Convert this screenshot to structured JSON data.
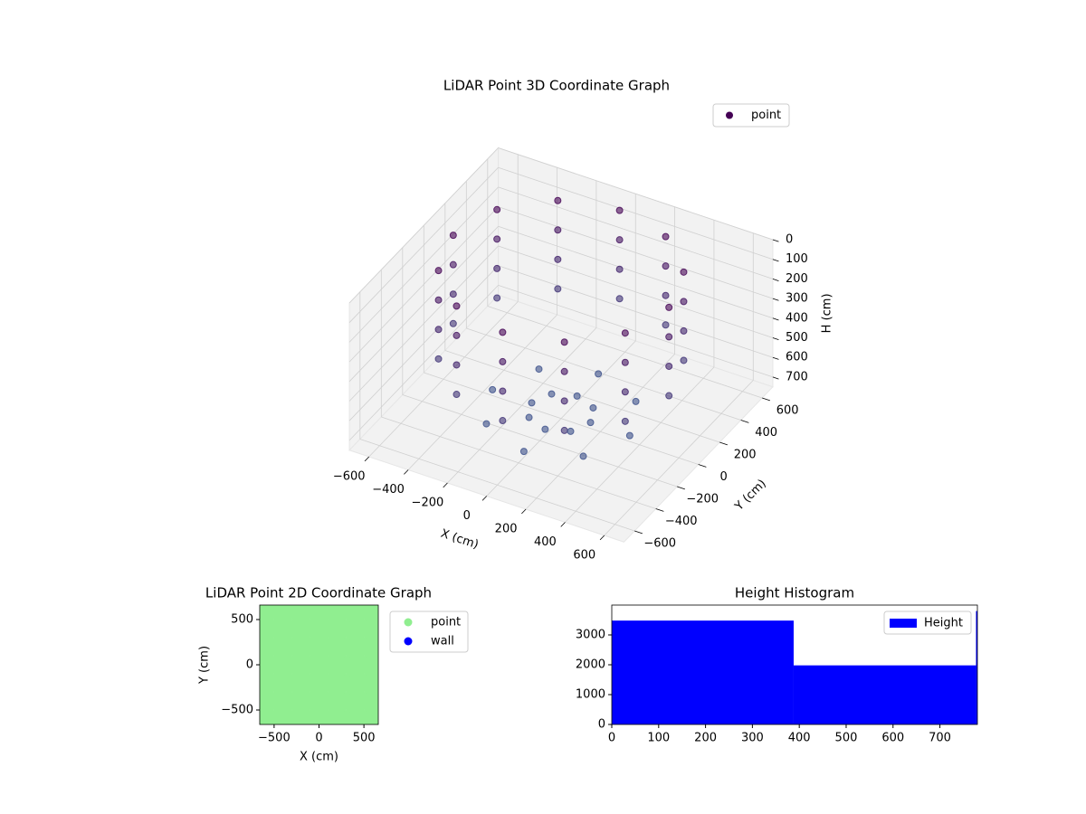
{
  "chart_data": [
    {
      "type": "scatter3d",
      "title": "LiDAR Point 3D Coordinate Graph",
      "xlabel": "X (cm)",
      "ylabel": "Y (cm)",
      "zlabel": "H (cm)",
      "xlim": [
        -700,
        700
      ],
      "ylim": [
        -700,
        700
      ],
      "zlim": [
        0,
        750
      ],
      "z_inverted": true,
      "xticks": [
        {
          "value": -600,
          "label": "−600"
        },
        {
          "value": -400,
          "label": "−400"
        },
        {
          "value": -200,
          "label": "−200"
        },
        0,
        200,
        400,
        600
      ],
      "yticks": [
        {
          "value": -600,
          "label": "−600"
        },
        {
          "value": -400,
          "label": "−400"
        },
        {
          "value": -200,
          "label": "−200"
        },
        0,
        200,
        400,
        600
      ],
      "zticks": [
        0,
        100,
        200,
        300,
        400,
        500,
        600,
        700
      ],
      "grid": true,
      "legend": "upper right",
      "colormap": [
        "#440154",
        "#3b528b"
      ],
      "series": [
        {
          "name": "point",
          "color": "#440154",
          "x": [
            550,
            476,
            275,
            0,
            -275,
            -476,
            -550,
            -476,
            -275,
            0,
            275,
            476,
            550,
            476,
            275,
            0,
            -275,
            -476,
            -550,
            -476,
            -275,
            0,
            275,
            476,
            550,
            476,
            275,
            0,
            -275,
            -476,
            -550,
            -476,
            -275,
            0,
            275,
            476,
            550,
            476,
            275,
            0,
            -275,
            -476,
            -550,
            -476,
            -275,
            0,
            275,
            476,
            150,
            106,
            0,
            -106,
            -150,
            -106,
            0,
            106,
            350,
            247,
            0,
            -247,
            -350,
            -247,
            0,
            247
          ],
          "y": [
            0,
            275,
            476,
            550,
            476,
            275,
            0,
            -275,
            -476,
            -550,
            -476,
            -275,
            0,
            275,
            476,
            550,
            476,
            275,
            0,
            -275,
            -476,
            -550,
            -476,
            -275,
            0,
            275,
            476,
            550,
            476,
            275,
            0,
            -275,
            -476,
            -550,
            -476,
            -275,
            0,
            275,
            476,
            550,
            476,
            275,
            0,
            -275,
            -476,
            -550,
            -476,
            -275,
            0,
            106,
            150,
            106,
            0,
            -106,
            -150,
            -106,
            0,
            247,
            350,
            247,
            0,
            -247,
            -350,
            -247
          ],
          "h": [
            0,
            0,
            0,
            0,
            0,
            0,
            0,
            0,
            0,
            0,
            0,
            0,
            150,
            150,
            150,
            150,
            150,
            150,
            150,
            150,
            150,
            150,
            150,
            150,
            300,
            300,
            300,
            300,
            300,
            300,
            300,
            300,
            300,
            300,
            300,
            300,
            450,
            450,
            450,
            450,
            450,
            450,
            450,
            450,
            450,
            450,
            450,
            450,
            720,
            720,
            720,
            720,
            720,
            720,
            720,
            720,
            720,
            720,
            720,
            720,
            720,
            720,
            720,
            720
          ]
        }
      ]
    },
    {
      "type": "scatter",
      "title": "LiDAR Point 2D Coordinate Graph",
      "xlabel": "X (cm)",
      "ylabel": "Y (cm)",
      "xlim": [
        -660,
        660
      ],
      "ylim": [
        -660,
        660
      ],
      "xticks": [
        {
          "value": -500,
          "label": "−500"
        },
        0,
        500
      ],
      "yticks": [
        {
          "value": -500,
          "label": "−500"
        },
        0,
        500
      ],
      "legend": "outside right",
      "series": [
        {
          "name": "point",
          "color": "#90ee90",
          "x": [
            -600,
            -400,
            -200,
            0,
            200,
            400,
            600,
            -600,
            -400,
            -200,
            0,
            200,
            400,
            600,
            -600,
            -400,
            -200,
            0,
            200,
            400,
            600,
            -600,
            -400,
            -200,
            0,
            200,
            400,
            600,
            -600,
            -400,
            -200,
            0,
            200,
            400,
            600,
            -600,
            -400,
            -200,
            0,
            200,
            400,
            600,
            -600,
            -400,
            -200,
            0,
            200,
            400,
            600
          ],
          "y": [
            -600,
            -600,
            -600,
            -600,
            -600,
            -600,
            -600,
            -400,
            -400,
            -400,
            -400,
            -400,
            -400,
            -400,
            -200,
            -200,
            -200,
            -200,
            -200,
            -200,
            -200,
            0,
            0,
            0,
            0,
            0,
            0,
            0,
            200,
            200,
            200,
            200,
            200,
            200,
            200,
            400,
            400,
            400,
            400,
            400,
            400,
            400,
            600,
            600,
            600,
            600,
            600,
            600,
            600
          ]
        },
        {
          "name": "wall",
          "color": "#0000ff",
          "x": [],
          "y": []
        }
      ]
    },
    {
      "type": "histogram",
      "title": "Height Histogram",
      "xlim": [
        0,
        780
      ],
      "ylim": [
        0,
        4000
      ],
      "xticks": [
        0,
        100,
        200,
        300,
        400,
        500,
        600,
        700
      ],
      "yticks": [
        0,
        1000,
        2000,
        3000
      ],
      "legend": "upper right",
      "series": [
        {
          "name": "Height",
          "color": "#0000ff",
          "bins": [
            0,
            388,
            777,
            780
          ],
          "counts": [
            3480,
            1980,
            3800
          ]
        }
      ]
    }
  ]
}
